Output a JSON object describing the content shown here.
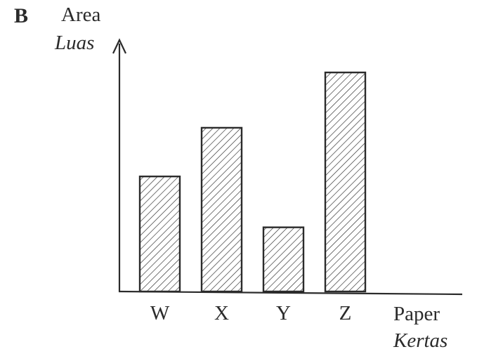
{
  "option_letter": "B",
  "chart_data": {
    "type": "bar",
    "categories": [
      "W",
      "X",
      "Y",
      "Z"
    ],
    "values": [
      52,
      74,
      29,
      99
    ],
    "ylim": [
      0,
      100
    ],
    "ylabel": "Area",
    "ylabel_alt": "Luas",
    "xlabel": "Paper",
    "xlabel_alt": "Kertas",
    "grid": false,
    "legend": "none",
    "bar_fill": "diagonal-hatch",
    "colors": {
      "ink": "#2b2b2b",
      "background": "#ffffff"
    }
  }
}
